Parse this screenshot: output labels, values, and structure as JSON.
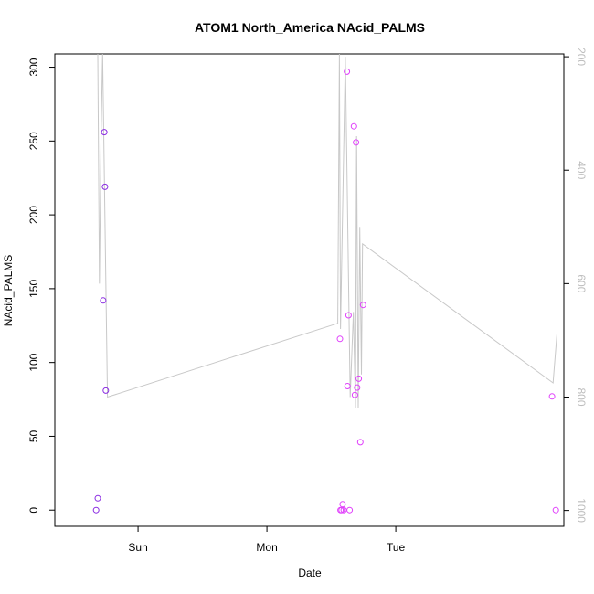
{
  "chart_data": {
    "type": "scatter",
    "title": "ATOM1 North_America NAcid_PALMS",
    "xlabel": "Date",
    "ylabel": "NAcid_PALMS",
    "xlim_hours": [
      -15.5,
      79.3
    ],
    "ylim": [
      -11,
      309
    ],
    "y_ticks": [
      0,
      50,
      100,
      150,
      200,
      250,
      300
    ],
    "x_ticks": [
      {
        "label": "Sun",
        "hours": 0
      },
      {
        "label": "Mon",
        "hours": 24
      },
      {
        "label": "Tue",
        "hours": 48
      }
    ],
    "y2_ticks": [
      200,
      400,
      600,
      800,
      1000
    ],
    "y2_ticks_color": "#bdbdbd",
    "y2_lim": [
      1028,
      195
    ],
    "altitude_line_color": "#c8c8c8",
    "grid": false,
    "points": [
      {
        "hours": -7.8,
        "value": 0,
        "color": "#8a2be2"
      },
      {
        "hours": -7.5,
        "value": 8,
        "color": "#8a2be2"
      },
      {
        "hours": -6.5,
        "value": 142,
        "color": "#8a2be2"
      },
      {
        "hours": -6.3,
        "value": 256,
        "color": "#8a2be2"
      },
      {
        "hours": -6.15,
        "value": 219,
        "color": "#8a2be2"
      },
      {
        "hours": -6.0,
        "value": 81,
        "color": "#8a2be2"
      },
      {
        "hours": 37.6,
        "value": 116,
        "color": "#e040fb"
      },
      {
        "hours": 37.7,
        "value": 0,
        "color": "#e040fb"
      },
      {
        "hours": 37.9,
        "value": 0,
        "color": "#e040fb"
      },
      {
        "hours": 38.1,
        "value": 4,
        "color": "#e040fb"
      },
      {
        "hours": 38.3,
        "value": 0,
        "color": "#e040fb"
      },
      {
        "hours": 38.9,
        "value": 297,
        "color": "#e040fb"
      },
      {
        "hours": 39.0,
        "value": 84,
        "color": "#e040fb"
      },
      {
        "hours": 39.2,
        "value": 132,
        "color": "#e040fb"
      },
      {
        "hours": 39.4,
        "value": 0,
        "color": "#e040fb"
      },
      {
        "hours": 40.2,
        "value": 260,
        "color": "#e040fb"
      },
      {
        "hours": 40.4,
        "value": 78,
        "color": "#e040fb"
      },
      {
        "hours": 40.6,
        "value": 249,
        "color": "#e040fb"
      },
      {
        "hours": 40.8,
        "value": 83,
        "color": "#e040fb"
      },
      {
        "hours": 41.1,
        "value": 89,
        "color": "#e040fb"
      },
      {
        "hours": 41.4,
        "value": 46,
        "color": "#e040fb"
      },
      {
        "hours": 41.9,
        "value": 139,
        "color": "#e040fb"
      },
      {
        "hours": 77.1,
        "value": 77,
        "color": "#e040fb"
      },
      {
        "hours": 77.8,
        "value": 0,
        "color": "#e040fb"
      }
    ],
    "altitude_line": [
      {
        "hours": -7.5,
        "alt": 190
      },
      {
        "hours": -7.2,
        "alt": 600
      },
      {
        "hours": -6.9,
        "alt": 350
      },
      {
        "hours": -6.6,
        "alt": 190
      },
      {
        "hours": -5.7,
        "alt": 800
      },
      {
        "hours": 37.2,
        "alt": 670
      },
      {
        "hours": 37.5,
        "alt": 190
      },
      {
        "hours": 37.7,
        "alt": 680
      },
      {
        "hours": 38.6,
        "alt": 200
      },
      {
        "hours": 39.5,
        "alt": 800
      },
      {
        "hours": 40.1,
        "alt": 650
      },
      {
        "hours": 40.5,
        "alt": 820
      },
      {
        "hours": 40.7,
        "alt": 340
      },
      {
        "hours": 41.0,
        "alt": 820
      },
      {
        "hours": 41.3,
        "alt": 500
      },
      {
        "hours": 41.6,
        "alt": 760
      },
      {
        "hours": 41.8,
        "alt": 530
      },
      {
        "hours": 77.3,
        "alt": 775
      },
      {
        "hours": 78.0,
        "alt": 690
      }
    ]
  }
}
